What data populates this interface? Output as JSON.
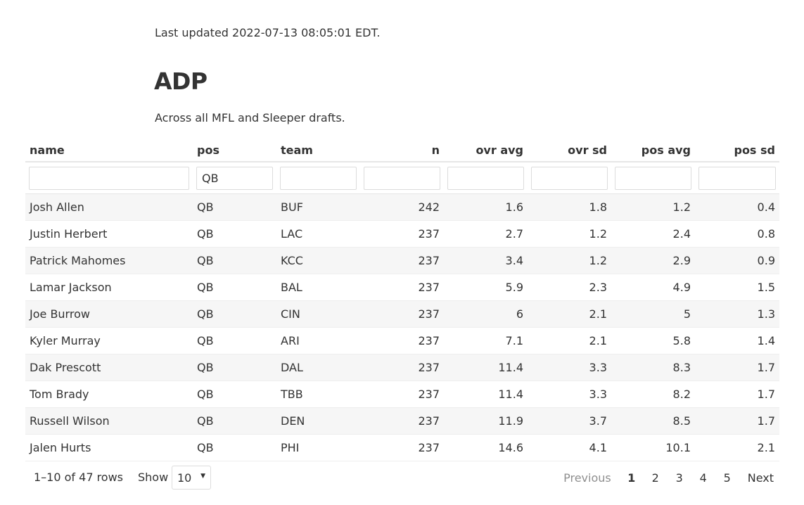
{
  "header": {
    "updated": "Last updated 2022-07-13 08:05:01 EDT.",
    "title": "ADP",
    "subtitle": "Across all MFL and Sleeper drafts."
  },
  "table": {
    "columns": [
      "name",
      "pos",
      "team",
      "n",
      "ovr avg",
      "ovr sd",
      "pos avg",
      "pos sd"
    ],
    "filters": [
      "",
      "QB",
      "",
      "",
      "",
      "",
      "",
      ""
    ],
    "rows": [
      [
        "Josh Allen",
        "QB",
        "BUF",
        "242",
        "1.6",
        "1.8",
        "1.2",
        "0.4"
      ],
      [
        "Justin Herbert",
        "QB",
        "LAC",
        "237",
        "2.7",
        "1.2",
        "2.4",
        "0.8"
      ],
      [
        "Patrick Mahomes",
        "QB",
        "KCC",
        "237",
        "3.4",
        "1.2",
        "2.9",
        "0.9"
      ],
      [
        "Lamar Jackson",
        "QB",
        "BAL",
        "237",
        "5.9",
        "2.3",
        "4.9",
        "1.5"
      ],
      [
        "Joe Burrow",
        "QB",
        "CIN",
        "237",
        "6",
        "2.1",
        "5",
        "1.3"
      ],
      [
        "Kyler Murray",
        "QB",
        "ARI",
        "237",
        "7.1",
        "2.1",
        "5.8",
        "1.4"
      ],
      [
        "Dak Prescott",
        "QB",
        "DAL",
        "237",
        "11.4",
        "3.3",
        "8.3",
        "1.7"
      ],
      [
        "Tom Brady",
        "QB",
        "TBB",
        "237",
        "11.4",
        "3.3",
        "8.2",
        "1.7"
      ],
      [
        "Russell Wilson",
        "QB",
        "DEN",
        "237",
        "11.9",
        "3.7",
        "8.5",
        "1.7"
      ],
      [
        "Jalen Hurts",
        "QB",
        "PHI",
        "237",
        "14.6",
        "4.1",
        "10.1",
        "2.1"
      ]
    ]
  },
  "pagination": {
    "info": "1–10 of 47 rows",
    "show_label": "Show",
    "page_size": "10",
    "previous": "Previous",
    "pages": [
      "1",
      "2",
      "3",
      "4",
      "5"
    ],
    "current_page": "1",
    "next": "Next"
  },
  "colors": {
    "text": "#333333",
    "stripe": "#f6f6f6",
    "border": "#e6e6e6",
    "disabled": "#8f8f8f"
  }
}
